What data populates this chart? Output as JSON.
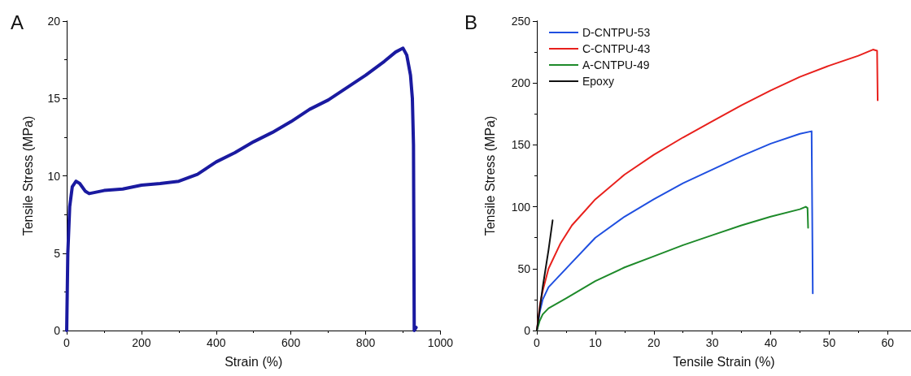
{
  "chart_data": [
    {
      "type": "line",
      "title": "A",
      "xlabel": "Strain (%)",
      "ylabel": "Tensile Stress (MPa)",
      "xlim": [
        0,
        1000
      ],
      "xticks": [
        0,
        200,
        400,
        600,
        800,
        1000
      ],
      "ylim": [
        0,
        20
      ],
      "yticks": [
        0,
        5,
        10,
        15,
        20
      ],
      "grid": false,
      "legend": false,
      "marker": "none",
      "line_style": "solid",
      "series": [
        {
          "color": "#1a1aa0",
          "x": [
            0,
            3,
            8,
            15,
            25,
            35,
            50,
            60,
            100,
            150,
            200,
            250,
            300,
            350,
            400,
            450,
            500,
            550,
            600,
            650,
            700,
            750,
            800,
            850,
            880,
            900,
            910,
            920,
            925,
            928,
            930,
            935
          ],
          "values": [
            0,
            5,
            8,
            9.3,
            9.65,
            9.5,
            9,
            8.85,
            9.05,
            9.15,
            9.4,
            9.5,
            9.65,
            10.1,
            10.9,
            11.5,
            12.2,
            12.8,
            13.5,
            14.3,
            14.9,
            15.7,
            16.5,
            17.4,
            18,
            18.25,
            17.8,
            16.5,
            15,
            12,
            0,
            0.2
          ]
        }
      ]
    },
    {
      "type": "line",
      "title": "B",
      "xlabel": "Tensile Strain (%)",
      "ylabel": "Tensile Stress (MPa)",
      "xlim": [
        0,
        64
      ],
      "xticks": [
        0,
        10,
        20,
        30,
        40,
        50,
        60
      ],
      "ylim": [
        0,
        250
      ],
      "yticks": [
        0,
        50,
        100,
        150,
        200,
        250
      ],
      "grid": false,
      "legend": "top left",
      "marker": "none",
      "line_style": "solid",
      "series": [
        {
          "name": "D-CNTPU-53",
          "color": "#1f4fe0",
          "x": [
            0,
            0.5,
            1,
            2,
            4,
            6,
            10,
            15,
            20,
            25,
            30,
            35,
            40,
            45,
            47,
            47.2
          ],
          "values": [
            0,
            15,
            25,
            35,
            45,
            55,
            75,
            92,
            106,
            119,
            130,
            141,
            151,
            159,
            161,
            30
          ]
        },
        {
          "name": "C-CNTPU-43",
          "color": "#e8201c",
          "x": [
            0,
            0.5,
            1,
            2,
            4,
            6,
            10,
            15,
            20,
            25,
            30,
            35,
            40,
            45,
            50,
            55,
            57.5,
            58.2,
            58.3
          ],
          "values": [
            0,
            20,
            32,
            50,
            70,
            85,
            106,
            126,
            142,
            156,
            169,
            182,
            194,
            205,
            214,
            222,
            227,
            226,
            186
          ]
        },
        {
          "name": "A-CNTPU-49",
          "color": "#1e8a2a",
          "x": [
            0,
            0.5,
            1,
            2,
            5,
            10,
            15,
            20,
            25,
            30,
            35,
            40,
            45,
            46,
            46.3,
            46.4
          ],
          "values": [
            0,
            8,
            13,
            18,
            26,
            40,
            51,
            60,
            69,
            77,
            85,
            92,
            98,
            100,
            99,
            83
          ]
        },
        {
          "name": "Epoxy",
          "color": "#111111",
          "x": [
            0,
            1,
            2,
            2.7
          ],
          "values": [
            0,
            35,
            65,
            89
          ]
        }
      ]
    }
  ]
}
